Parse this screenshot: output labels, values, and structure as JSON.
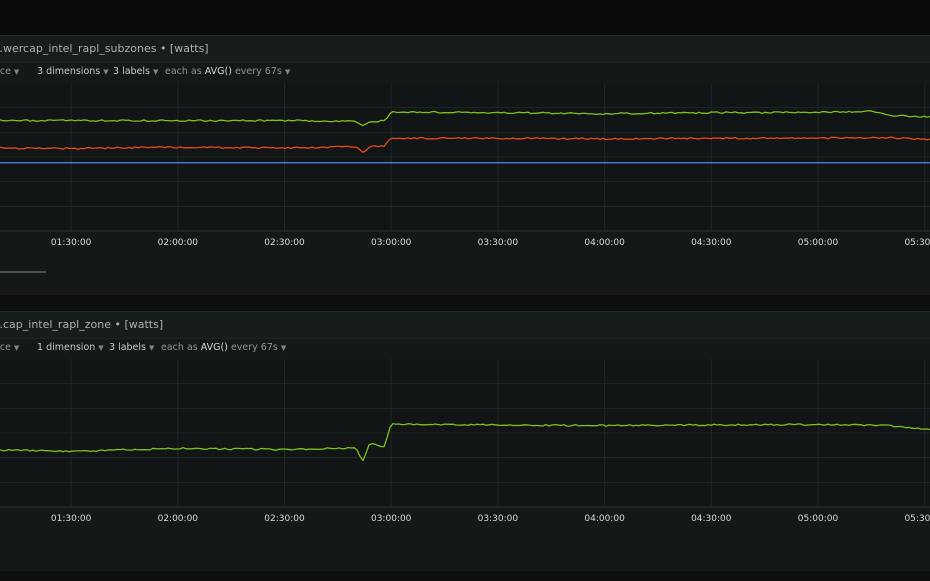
{
  "chart_data": [
    {
      "type": "line",
      "title": "…wercap_intel_rapl_subzones • [watts]",
      "units": "watts",
      "controls": {
        "group": "ance",
        "dimensions": "3 dimensions",
        "labels": "3 labels",
        "agg_prefix": "each as",
        "agg": "AVG()",
        "agg_suffix": "every 67s"
      },
      "x_ticks": [
        "01:30:00",
        "02:00:00",
        "02:30:00",
        "03:00:00",
        "03:30:00",
        "04:00:00",
        "04:30:00",
        "05:00:00",
        "05:30:00"
      ],
      "xlim": [
        "01:10:00",
        "05:31:30"
      ],
      "ylim": [
        0,
        26
      ],
      "grid": true,
      "series": [
        {
          "color": "#7cc21c",
          "points": [
            [
              "01:10:00",
              19.4
            ],
            [
              "01:30:00",
              19.4
            ],
            [
              "02:00:00",
              19.4
            ],
            [
              "02:30:00",
              19.4
            ],
            [
              "02:50:00",
              19.3
            ],
            [
              "02:52:00",
              18.4
            ],
            [
              "02:54:00",
              19.3
            ],
            [
              "02:58:00",
              19.3
            ],
            [
              "03:00:00",
              20.9
            ],
            [
              "03:30:00",
              20.8
            ],
            [
              "04:00:00",
              20.6
            ],
            [
              "04:30:00",
              20.8
            ],
            [
              "05:00:00",
              20.8
            ],
            [
              "05:15:00",
              21.0
            ],
            [
              "05:20:00",
              20.3
            ],
            [
              "05:31:30",
              20.1
            ]
          ]
        },
        {
          "color": "#e9491a",
          "points": [
            [
              "01:10:00",
              14.6
            ],
            [
              "01:30:00",
              14.5
            ],
            [
              "02:00:00",
              14.7
            ],
            [
              "02:30:00",
              14.6
            ],
            [
              "02:50:00",
              14.8
            ],
            [
              "02:52:00",
              13.8
            ],
            [
              "02:54:00",
              14.9
            ],
            [
              "02:58:00",
              14.9
            ],
            [
              "03:00:00",
              16.3
            ],
            [
              "03:30:00",
              16.3
            ],
            [
              "04:00:00",
              16.2
            ],
            [
              "04:30:00",
              16.3
            ],
            [
              "05:00:00",
              16.3
            ],
            [
              "05:20:00",
              16.4
            ],
            [
              "05:31:30",
              16.0
            ]
          ]
        },
        {
          "color": "#4a7fd8",
          "points": [
            [
              "01:10:00",
              12.0
            ],
            [
              "05:31:30",
              12.0
            ]
          ]
        }
      ]
    },
    {
      "type": "line",
      "title": "…cap_intel_rapl_zone • [watts]",
      "units": "watts",
      "controls": {
        "group": "ance",
        "dimensions": "1 dimension",
        "labels": "3 labels",
        "agg_prefix": "each as",
        "agg": "AVG()",
        "agg_suffix": "every 67s"
      },
      "x_ticks": [
        "01:30:00",
        "02:00:00",
        "02:30:00",
        "03:00:00",
        "03:30:00",
        "04:00:00",
        "04:30:00",
        "05:00:00",
        "05:30:00"
      ],
      "xlim": [
        "01:10:00",
        "05:31:30"
      ],
      "ylim": [
        0,
        26
      ],
      "grid": true,
      "series": [
        {
          "color": "#7cc21c",
          "points": [
            [
              "01:10:00",
              10.0
            ],
            [
              "01:30:00",
              9.8
            ],
            [
              "02:00:00",
              10.3
            ],
            [
              "02:30:00",
              10.1
            ],
            [
              "02:50:00",
              10.4
            ],
            [
              "02:52:00",
              8.0
            ],
            [
              "02:54:00",
              11.2
            ],
            [
              "02:58:00",
              10.6
            ],
            [
              "03:00:00",
              14.6
            ],
            [
              "03:30:00",
              14.4
            ],
            [
              "04:00:00",
              14.3
            ],
            [
              "04:30:00",
              14.4
            ],
            [
              "05:00:00",
              14.5
            ],
            [
              "05:20:00",
              14.3
            ],
            [
              "05:31:30",
              13.6
            ]
          ]
        }
      ]
    }
  ]
}
